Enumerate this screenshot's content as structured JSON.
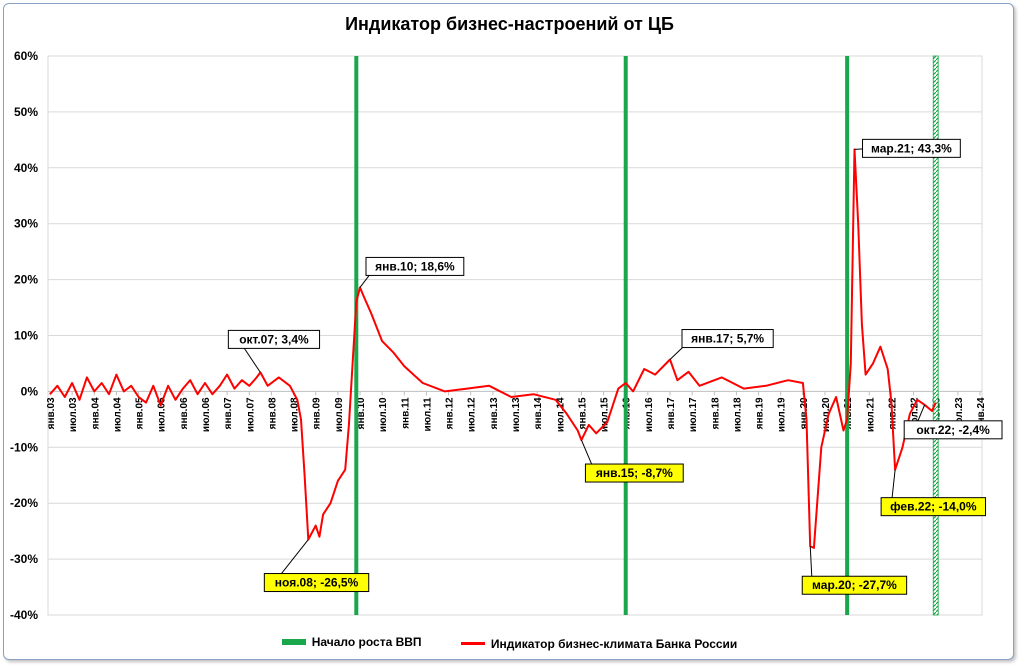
{
  "chart_data": {
    "type": "line",
    "title": "Индикатор бизнес-настроений от ЦБ",
    "ylim": [
      -40,
      60
    ],
    "y_ticks": [
      "60%",
      "50%",
      "40%",
      "30%",
      "20%",
      "10%",
      "0%",
      "-10%",
      "-20%",
      "-30%",
      "-40%"
    ],
    "x_range": [
      "2003-01",
      "2024-01"
    ],
    "x_ticks": [
      "янв.03",
      "июл.03",
      "янв.04",
      "июл.04",
      "янв.05",
      "июл.05",
      "янв.06",
      "июл.06",
      "янв.07",
      "июл.07",
      "янв.08",
      "июл.08",
      "янв.09",
      "июл.09",
      "янв.10",
      "июл.10",
      "янв.11",
      "июл.11",
      "янв.12",
      "июл.12",
      "янв.13",
      "июл.13",
      "янв.14",
      "июл.14",
      "янв.15",
      "июл.15",
      "янв.16",
      "июл.16",
      "янв.17",
      "июл.17",
      "янв.18",
      "июл.18",
      "янв.19",
      "июл.19",
      "янв.20",
      "июл.20",
      "янв.21",
      "июл.21",
      "янв.22",
      "июл.22",
      "янв.23",
      "июл.23",
      "янв.24"
    ],
    "gdp_growth_starts": [
      "2009-12",
      "2016-01",
      "2021-01"
    ],
    "gdp_growth_forecast": "2023-01",
    "colors": {
      "series": "#ff0000",
      "gdp": "#1aa64a"
    },
    "series": [
      {
        "name": "Индикатор бизнес-климата Банка России",
        "points": [
          [
            "2003-01",
            -0.5
          ],
          [
            "2003-03",
            1.0
          ],
          [
            "2003-05",
            -1.0
          ],
          [
            "2003-07",
            1.5
          ],
          [
            "2003-09",
            -1.5
          ],
          [
            "2003-11",
            2.5
          ],
          [
            "2004-01",
            0.0
          ],
          [
            "2004-03",
            1.5
          ],
          [
            "2004-05",
            -0.5
          ],
          [
            "2004-07",
            3.0
          ],
          [
            "2004-09",
            0.0
          ],
          [
            "2004-11",
            1.0
          ],
          [
            "2005-01",
            -1.0
          ],
          [
            "2005-03",
            -2.0
          ],
          [
            "2005-05",
            1.0
          ],
          [
            "2005-07",
            -2.5
          ],
          [
            "2005-09",
            1.0
          ],
          [
            "2005-11",
            -1.5
          ],
          [
            "2006-01",
            0.5
          ],
          [
            "2006-03",
            2.0
          ],
          [
            "2006-05",
            -0.5
          ],
          [
            "2006-07",
            1.5
          ],
          [
            "2006-09",
            -0.5
          ],
          [
            "2006-11",
            1.0
          ],
          [
            "2007-01",
            3.0
          ],
          [
            "2007-03",
            0.5
          ],
          [
            "2007-05",
            2.0
          ],
          [
            "2007-07",
            1.0
          ],
          [
            "2007-09",
            2.5
          ],
          [
            "2007-10",
            3.4
          ],
          [
            "2007-12",
            1.0
          ],
          [
            "2008-03",
            2.5
          ],
          [
            "2008-06",
            1.0
          ],
          [
            "2008-08",
            -1.5
          ],
          [
            "2008-09",
            -5.0
          ],
          [
            "2008-10",
            -15.0
          ],
          [
            "2008-11",
            -26.5
          ],
          [
            "2009-01",
            -24.0
          ],
          [
            "2009-02",
            -26.0
          ],
          [
            "2009-03",
            -22.0
          ],
          [
            "2009-05",
            -20.0
          ],
          [
            "2009-07",
            -16.0
          ],
          [
            "2009-09",
            -14.0
          ],
          [
            "2009-10",
            -6.0
          ],
          [
            "2009-11",
            5.0
          ],
          [
            "2009-12",
            16.0
          ],
          [
            "2010-01",
            18.6
          ],
          [
            "2010-02",
            17.0
          ],
          [
            "2010-04",
            14.0
          ],
          [
            "2010-07",
            9.0
          ],
          [
            "2010-10",
            7.0
          ],
          [
            "2011-01",
            4.5
          ],
          [
            "2011-06",
            1.5
          ],
          [
            "2011-12",
            0.0
          ],
          [
            "2012-06",
            0.5
          ],
          [
            "2012-12",
            1.0
          ],
          [
            "2013-06",
            -1.0
          ],
          [
            "2013-12",
            -0.5
          ],
          [
            "2014-06",
            -1.5
          ],
          [
            "2014-09",
            -4.0
          ],
          [
            "2014-12",
            -7.0
          ],
          [
            "2015-01",
            -8.7
          ],
          [
            "2015-03",
            -6.0
          ],
          [
            "2015-05",
            -7.5
          ],
          [
            "2015-08",
            -5.5
          ],
          [
            "2015-11",
            0.5
          ],
          [
            "2016-01",
            1.5
          ],
          [
            "2016-03",
            0.0
          ],
          [
            "2016-06",
            4.0
          ],
          [
            "2016-09",
            3.0
          ],
          [
            "2017-01",
            5.7
          ],
          [
            "2017-03",
            2.0
          ],
          [
            "2017-06",
            3.5
          ],
          [
            "2017-09",
            1.0
          ],
          [
            "2018-03",
            2.5
          ],
          [
            "2018-09",
            0.5
          ],
          [
            "2019-03",
            1.0
          ],
          [
            "2019-09",
            2.0
          ],
          [
            "2020-01",
            1.5
          ],
          [
            "2020-02",
            -5.0
          ],
          [
            "2020-03",
            -27.7
          ],
          [
            "2020-04",
            -28.0
          ],
          [
            "2020-06",
            -10.0
          ],
          [
            "2020-08",
            -4.0
          ],
          [
            "2020-10",
            -1.0
          ],
          [
            "2020-12",
            -7.0
          ],
          [
            "2021-01",
            -5.0
          ],
          [
            "2021-02",
            5.0
          ],
          [
            "2021-03",
            43.3
          ],
          [
            "2021-04",
            30.0
          ],
          [
            "2021-05",
            12.0
          ],
          [
            "2021-06",
            3.0
          ],
          [
            "2021-08",
            5.0
          ],
          [
            "2021-10",
            8.0
          ],
          [
            "2021-12",
            4.0
          ],
          [
            "2022-01",
            -2.0
          ],
          [
            "2022-02",
            -14.0
          ],
          [
            "2022-04",
            -10.0
          ],
          [
            "2022-06",
            -4.0
          ],
          [
            "2022-08",
            -1.5
          ],
          [
            "2022-10",
            -2.4
          ],
          [
            "2022-12",
            -3.5
          ],
          [
            "2023-01",
            -2.0
          ]
        ]
      }
    ],
    "annotations": [
      {
        "label": "окт.07; 3,4%",
        "date": "2007-10",
        "value": 3.4,
        "style": "white"
      },
      {
        "label": "янв.10; 18,6%",
        "date": "2010-01",
        "value": 18.6,
        "style": "white"
      },
      {
        "label": "янв.17; 5,7%",
        "date": "2017-01",
        "value": 5.7,
        "style": "white"
      },
      {
        "label": "мар.21; 43,3%",
        "date": "2021-03",
        "value": 43.3,
        "style": "white"
      },
      {
        "label": "окт.22; -2,4%",
        "date": "2022-10",
        "value": -2.4,
        "style": "white"
      },
      {
        "label": "ноя.08; -26,5%",
        "date": "2008-11",
        "value": -26.5,
        "style": "yellow"
      },
      {
        "label": "янв.15; -8,7%",
        "date": "2015-01",
        "value": -8.7,
        "style": "yellow"
      },
      {
        "label": "мар.20; -27,7%",
        "date": "2020-03",
        "value": -27.7,
        "style": "yellow"
      },
      {
        "label": "фев.22; -14,0%",
        "date": "2022-02",
        "value": -14.0,
        "style": "yellow"
      }
    ],
    "legend": [
      {
        "label": "Начало роста ВВП"
      },
      {
        "label": "Индикатор бизнес-климата Банка России"
      }
    ]
  }
}
